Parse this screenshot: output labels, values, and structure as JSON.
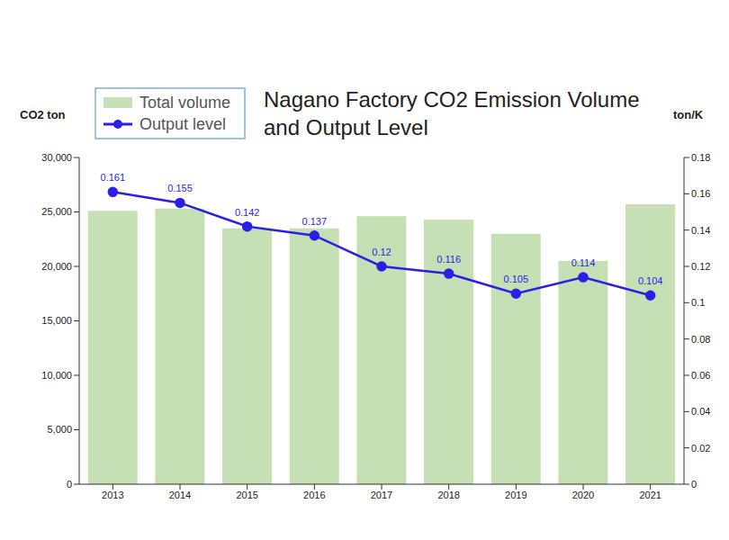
{
  "chart_data": {
    "type": "bar",
    "title": "Nagano Factory CO2 Emission Volume and Output Level",
    "y_label": "CO2 ton",
    "y2_label": "ton/K",
    "categories": [
      "2013",
      "2014",
      "2015",
      "2016",
      "2017",
      "2018",
      "2019",
      "2020",
      "2021"
    ],
    "series": [
      {
        "name": "Total volume",
        "type": "bar",
        "color": "#c5e0b4",
        "values": [
          25100,
          25300,
          23500,
          23500,
          24600,
          24300,
          23000,
          20500,
          25700
        ]
      },
      {
        "name": "Output level",
        "type": "line",
        "axis": "y2",
        "color": "#2a1fe6",
        "marker": "circle",
        "line_style": "solid",
        "data_labels": true,
        "values": [
          0.161,
          0.155,
          0.142,
          0.137,
          0.12,
          0.116,
          0.105,
          0.114,
          0.104
        ]
      }
    ],
    "ylim": [
      0,
      30000
    ],
    "yticks": [
      0,
      {
        "value": 5000,
        "label": "5,000"
      },
      {
        "value": 10000,
        "label": "10,000"
      },
      {
        "value": 15000,
        "label": "15,000"
      },
      {
        "value": 20000,
        "label": "20,000"
      },
      {
        "value": 25000,
        "label": "25,000"
      },
      {
        "value": 30000,
        "label": "30,000"
      }
    ],
    "y2lim": [
      0,
      0.18
    ],
    "y2ticks": [
      0,
      0.02,
      0.04,
      0.06,
      0.08,
      0.1,
      0.12,
      0.14,
      0.16,
      0.18
    ],
    "grid": false,
    "legend": "top left"
  }
}
